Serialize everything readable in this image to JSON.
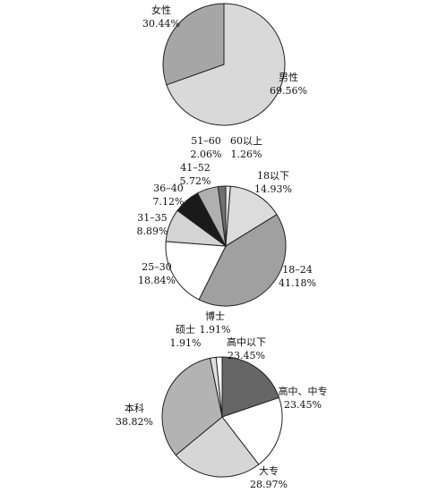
{
  "chart_data": [
    {
      "type": "pie",
      "categories": [
        "男性",
        "女性"
      ],
      "values": [
        69.56,
        30.44
      ],
      "value_labels": [
        "69.56%",
        "30.44%"
      ],
      "colors": [
        "#d9d9d9",
        "#a6a6a6"
      ]
    },
    {
      "type": "pie",
      "categories": [
        "60以上",
        "18以下",
        "18–24",
        "25–30",
        "31–35",
        "36–40",
        "41–52",
        "51–60"
      ],
      "values": [
        1.26,
        14.93,
        41.18,
        18.84,
        8.89,
        7.12,
        5.72,
        2.06
      ],
      "value_labels": [
        "1.26%",
        "14.93%",
        "41.18%",
        "18.84%",
        "8.89%",
        "7.12%",
        "5.72%",
        "2.06%"
      ],
      "colors": [
        "#e6e6e6",
        "#dcdcdc",
        "#a0a0a0",
        "#ffffff",
        "#d4d4d4",
        "#1a1a1a",
        "#b0b0b0",
        "#707070"
      ]
    },
    {
      "type": "pie",
      "categories": [
        "高中以下",
        "高中、中专",
        "大专",
        "本科",
        "硕士",
        "博士"
      ],
      "values": [
        23.45,
        23.45,
        28.97,
        38.82,
        1.91,
        1.91
      ],
      "value_labels": [
        "23.45%",
        "23.45%",
        "28.97%",
        "38.82%",
        "1.91%",
        "1.91%"
      ],
      "colors": [
        "#666666",
        "#ffffff",
        "#d6d6d6",
        "#b3b3b3",
        "#e0e0e0",
        "#ffffff"
      ]
    }
  ]
}
